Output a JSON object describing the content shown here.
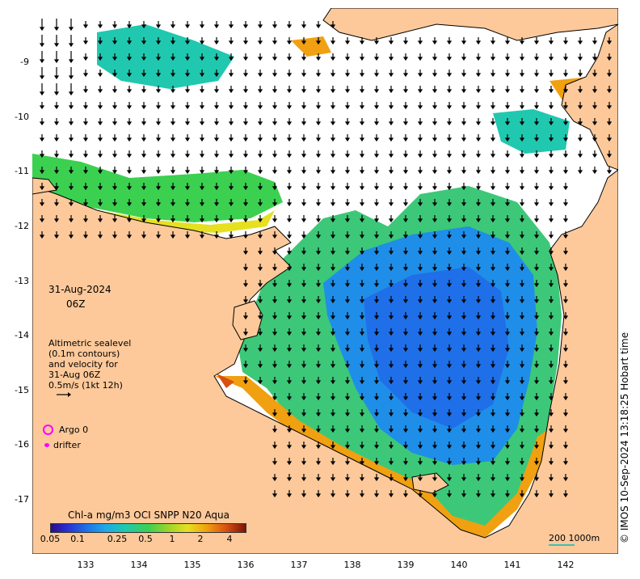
{
  "date_line1": "31-Aug-2024",
  "date_line2": "06Z",
  "altimetry_lines": [
    "Altimetric sealevel",
    "(0.1m contours)",
    "and velocity for",
    "31-Aug 06Z",
    "0.5m/s (1kt 12h)"
  ],
  "legend": {
    "argo": "Argo 0",
    "drifter": "drifter"
  },
  "colorbar": {
    "title": "Chl-a mg/m3 OCI SNPP N20 Aqua",
    "ticks": [
      "0.05",
      "0.1",
      "0.25",
      "0.5",
      "1",
      "2",
      "4"
    ]
  },
  "scale_label": "200  1000m",
  "credit": "© IMOS 10-Sep-2024 13:18:25 Hobart time",
  "axes": {
    "x_ticks": [
      "133",
      "134",
      "135",
      "136",
      "137",
      "138",
      "139",
      "140",
      "141",
      "142"
    ],
    "y_ticks": [
      "-9",
      "-10",
      "-11",
      "-12",
      "-13",
      "-14",
      "-15",
      "-16",
      "-17"
    ],
    "lon_range": [
      132.0,
      143.0
    ],
    "lat_range": [
      -8.0,
      -17.9
    ]
  },
  "colors": {
    "land": "#fdc99a",
    "coast": "#000000",
    "ocean": "#ffffff",
    "marker": "#ff00ff"
  }
}
